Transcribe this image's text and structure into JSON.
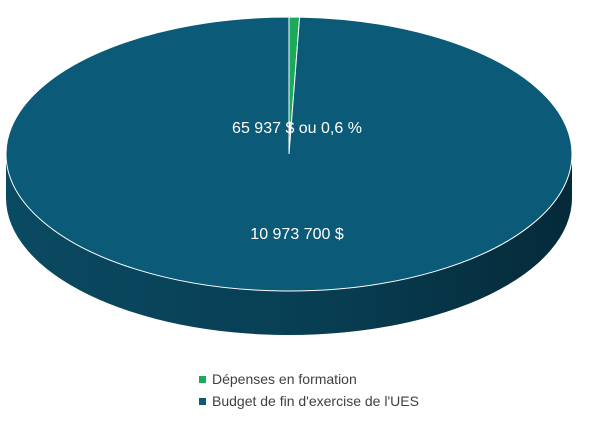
{
  "chart_data": {
    "type": "pie",
    "style": "3d",
    "slices": [
      {
        "name": "Dépenses en formation",
        "value": 65937,
        "label": "65 937 $ ou 0,6 %",
        "color": "#1aaa5a"
      },
      {
        "name": "Budget de fin d'exercise de l'UES",
        "value": 10973700,
        "label": "10 973 700 $",
        "color": "#0b5a78"
      }
    ],
    "legend": "bottom"
  }
}
